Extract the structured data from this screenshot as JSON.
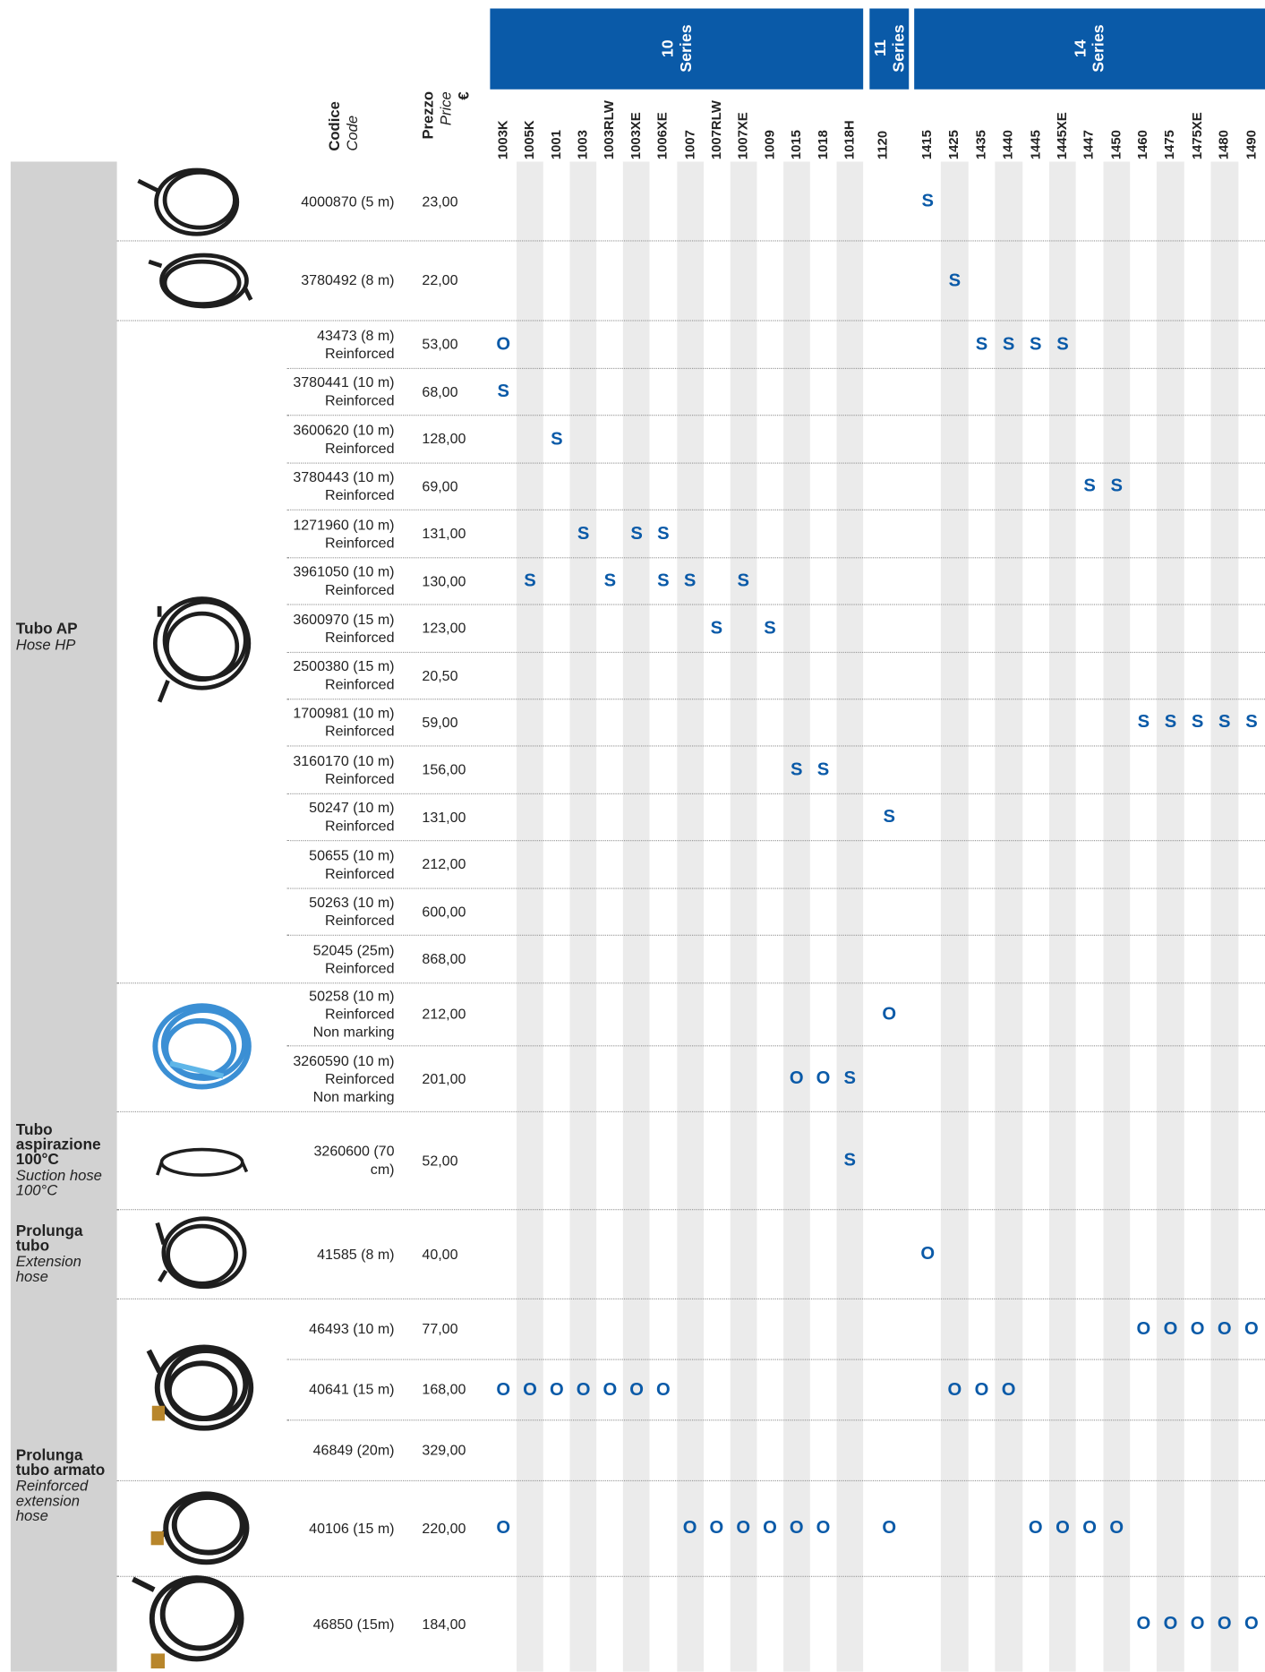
{
  "header": {
    "code_label": "Codice",
    "code_label_en": "Code",
    "price_label": "Prezzo",
    "price_label_en": "Price",
    "currency": "€"
  },
  "series": [
    {
      "number": "10",
      "label": "Series",
      "models": [
        "1003K",
        "1005K",
        "1001",
        "1003",
        "1003RLW",
        "1003XE",
        "1006XE",
        "1007",
        "1007RLW",
        "1007XE",
        "1009",
        "1015",
        "1018",
        "1018H"
      ]
    },
    {
      "number": "11",
      "label": "Series",
      "models": [
        "1120"
      ]
    },
    {
      "number": "14",
      "label": "Series",
      "models": [
        "1415",
        "1425",
        "1435",
        "1440",
        "1445",
        "1445XE",
        "1447",
        "1450",
        "1460",
        "1475",
        "1475XE",
        "1480",
        "1490"
      ]
    }
  ],
  "groups": [
    {
      "name": "Tubo AP",
      "name_en": "Hose HP",
      "rows": [
        {
          "code": [
            "4000870 (5 m)"
          ],
          "price": "23,00",
          "marks": [
            [
              null,
              null,
              null,
              null,
              null,
              null,
              null,
              null,
              null,
              null,
              null,
              null,
              null,
              null
            ],
            [
              null
            ],
            [
              "S",
              null,
              null,
              null,
              null,
              null,
              null,
              null,
              null,
              null,
              null,
              null,
              null
            ]
          ]
        },
        {
          "code": [
            "3780492 (8 m)"
          ],
          "price": "22,00",
          "marks": [
            [
              null,
              null,
              null,
              null,
              null,
              null,
              null,
              null,
              null,
              null,
              null,
              null,
              null,
              null
            ],
            [
              null
            ],
            [
              null,
              "S",
              null,
              null,
              null,
              null,
              null,
              null,
              null,
              null,
              null,
              null,
              null
            ]
          ]
        },
        {
          "code": [
            "43473 (8 m)",
            "Reinforced"
          ],
          "price": "53,00",
          "marks": [
            [
              "O",
              null,
              null,
              null,
              null,
              null,
              null,
              null,
              null,
              null,
              null,
              null,
              null,
              null
            ],
            [
              null
            ],
            [
              null,
              null,
              "S",
              "S",
              "S",
              "S",
              null,
              null,
              null,
              null,
              null,
              null,
              null
            ]
          ]
        },
        {
          "code": [
            "3780441 (10 m)",
            "Reinforced"
          ],
          "price": "68,00",
          "marks": [
            [
              "S",
              null,
              null,
              null,
              null,
              null,
              null,
              null,
              null,
              null,
              null,
              null,
              null,
              null
            ],
            [
              null
            ],
            [
              null,
              null,
              null,
              null,
              null,
              null,
              null,
              null,
              null,
              null,
              null,
              null,
              null
            ]
          ]
        },
        {
          "code": [
            "3600620 (10 m)",
            "Reinforced"
          ],
          "price": "128,00",
          "marks": [
            [
              null,
              null,
              "S",
              null,
              null,
              null,
              null,
              null,
              null,
              null,
              null,
              null,
              null,
              null
            ],
            [
              null
            ],
            [
              null,
              null,
              null,
              null,
              null,
              null,
              null,
              null,
              null,
              null,
              null,
              null,
              null
            ]
          ]
        },
        {
          "code": [
            "3780443 (10 m)",
            "Reinforced"
          ],
          "price": "69,00",
          "marks": [
            [
              null,
              null,
              null,
              null,
              null,
              null,
              null,
              null,
              null,
              null,
              null,
              null,
              null,
              null
            ],
            [
              null
            ],
            [
              null,
              null,
              null,
              null,
              null,
              null,
              "S",
              "S",
              null,
              null,
              null,
              null,
              null
            ]
          ]
        },
        {
          "code": [
            "1271960 (10 m)",
            "Reinforced"
          ],
          "price": "131,00",
          "marks": [
            [
              null,
              null,
              null,
              "S",
              null,
              "S",
              "S",
              null,
              null,
              null,
              null,
              null,
              null,
              null
            ],
            [
              null
            ],
            [
              null,
              null,
              null,
              null,
              null,
              null,
              null,
              null,
              null,
              null,
              null,
              null,
              null
            ]
          ]
        },
        {
          "code": [
            "3961050 (10 m)",
            "Reinforced"
          ],
          "price": "130,00",
          "marks": [
            [
              null,
              "S",
              null,
              null,
              "S",
              null,
              "S",
              "S",
              null,
              "S",
              null,
              null,
              null,
              null
            ],
            [
              null
            ],
            [
              null,
              null,
              null,
              null,
              null,
              null,
              null,
              null,
              null,
              null,
              null,
              null,
              null
            ]
          ]
        },
        {
          "code": [
            "3600970 (15 m)",
            "Reinforced"
          ],
          "price": "123,00",
          "marks": [
            [
              null,
              null,
              null,
              null,
              null,
              null,
              null,
              null,
              "S",
              null,
              "S",
              null,
              null,
              null
            ],
            [
              null
            ],
            [
              null,
              null,
              null,
              null,
              null,
              null,
              null,
              null,
              null,
              null,
              null,
              null,
              null
            ]
          ]
        },
        {
          "code": [
            "2500380 (15 m)",
            "Reinforced"
          ],
          "price": "20,50"
        },
        {
          "code": [
            "1700981 (10 m)",
            "Reinforced"
          ],
          "price": "59,00",
          "marks": [
            [
              null,
              null,
              null,
              null,
              null,
              null,
              null,
              null,
              null,
              null,
              null,
              null,
              null,
              null
            ],
            [
              null
            ],
            [
              null,
              null,
              null,
              null,
              null,
              null,
              null,
              null,
              "S",
              "S",
              "S",
              "S",
              "S"
            ]
          ]
        },
        {
          "code": [
            "3160170 (10 m)",
            "Reinforced"
          ],
          "price": "156,00",
          "marks": [
            [
              null,
              null,
              null,
              null,
              null,
              null,
              null,
              null,
              null,
              null,
              null,
              "S",
              "S",
              null
            ],
            [
              null
            ],
            [
              null,
              null,
              null,
              null,
              null,
              null,
              null,
              null,
              null,
              null,
              null,
              null,
              null
            ]
          ]
        },
        {
          "code": [
            "50247 (10 m)",
            "Reinforced"
          ],
          "price": "131,00",
          "marks": [
            [
              null,
              null,
              null,
              null,
              null,
              null,
              null,
              null,
              null,
              null,
              null,
              null,
              null,
              null
            ],
            [
              "S"
            ],
            [
              null,
              null,
              null,
              null,
              null,
              null,
              null,
              null,
              null,
              null,
              null,
              null,
              null
            ]
          ]
        },
        {
          "code": [
            "50655 (10 m)",
            "Reinforced"
          ],
          "price": "212,00"
        },
        {
          "code": [
            "50263 (10 m)",
            "Reinforced"
          ],
          "price": "600,00"
        },
        {
          "code": [
            "52045 (25m)",
            "Reinforced"
          ],
          "price": "868,00"
        },
        {
          "code": [
            "50258 (10 m)",
            "Reinforced",
            "Non marking"
          ],
          "price": "212,00",
          "marks": [
            [
              null,
              null,
              null,
              null,
              null,
              null,
              null,
              null,
              null,
              null,
              null,
              null,
              null,
              null
            ],
            [
              "O"
            ],
            [
              null,
              null,
              null,
              null,
              null,
              null,
              null,
              null,
              null,
              null,
              null,
              null,
              null
            ]
          ]
        },
        {
          "code": [
            "3260590 (10 m)",
            "Reinforced",
            "Non marking"
          ],
          "price": "201,00",
          "marks": [
            [
              null,
              null,
              null,
              null,
              null,
              null,
              null,
              null,
              null,
              null,
              null,
              "O",
              "O",
              "S"
            ],
            [
              null
            ],
            [
              null,
              null,
              null,
              null,
              null,
              null,
              null,
              null,
              null,
              null,
              null,
              null,
              null
            ]
          ]
        }
      ]
    },
    {
      "name": "Tubo aspirazione 100°C",
      "name_en": "Suction hose 100°C",
      "rows": [
        {
          "code": [
            "3260600 (70",
            "cm)"
          ],
          "price": "52,00",
          "marks": [
            [
              null,
              null,
              null,
              null,
              null,
              null,
              null,
              null,
              null,
              null,
              null,
              null,
              null,
              "S"
            ],
            [
              null
            ],
            [
              null,
              null,
              null,
              null,
              null,
              null,
              null,
              null,
              null,
              null,
              null,
              null,
              null
            ]
          ]
        }
      ]
    },
    {
      "name": "Prolunga tubo",
      "name_en": "Extension hose",
      "rows": [
        {
          "code": [
            "41585 (8 m)"
          ],
          "price": "40,00",
          "marks": [
            [
              null,
              null,
              null,
              null,
              null,
              null,
              null,
              null,
              null,
              null,
              null,
              null,
              null,
              null
            ],
            [
              null
            ],
            [
              "O",
              null,
              null,
              null,
              null,
              null,
              null,
              null,
              null,
              null,
              null,
              null,
              null
            ]
          ]
        }
      ]
    },
    {
      "name": "Prolunga tubo armato",
      "name_en": "Reinforced extension hose",
      "rows": [
        {
          "code": [
            "46493 (10 m)"
          ],
          "price": "77,00",
          "marks": [
            [
              null,
              null,
              null,
              null,
              null,
              null,
              null,
              null,
              null,
              null,
              null,
              null,
              null,
              null
            ],
            [
              null
            ],
            [
              null,
              null,
              null,
              null,
              null,
              null,
              null,
              null,
              "O",
              "O",
              "O",
              "O",
              "O"
            ]
          ]
        },
        {
          "code": [
            "40641 (15 m)"
          ],
          "price": "168,00",
          "marks": [
            [
              "O",
              "O",
              "O",
              "O",
              "O",
              "O",
              "O",
              null,
              null,
              null,
              null,
              null,
              null,
              null
            ],
            [
              null
            ],
            [
              null,
              "O",
              "O",
              "O",
              null,
              null,
              null,
              null,
              null,
              null,
              null,
              null,
              null
            ]
          ]
        },
        {
          "code": [
            "46849 (20m)"
          ],
          "price": "329,00"
        },
        {
          "code": [
            "40106 (15 m)"
          ],
          "price": "220,00",
          "marks": [
            [
              "O",
              null,
              null,
              null,
              null,
              null,
              null,
              "O",
              "O",
              "O",
              "O",
              "O",
              "O",
              null
            ],
            [
              "O"
            ],
            [
              null,
              null,
              null,
              null,
              "O",
              "O",
              "O",
              "O",
              null,
              null,
              null,
              null,
              null
            ]
          ]
        },
        {
          "code": [
            "46850 (15m)"
          ],
          "price": "184,00",
          "marks": [
            [
              null,
              null,
              null,
              null,
              null,
              null,
              null,
              null,
              null,
              null,
              null,
              null,
              null,
              null
            ],
            [
              null
            ],
            [
              null,
              null,
              null,
              null,
              null,
              null,
              null,
              null,
              "O",
              "O",
              "O",
              "O",
              "O"
            ]
          ]
        }
      ]
    }
  ]
}
